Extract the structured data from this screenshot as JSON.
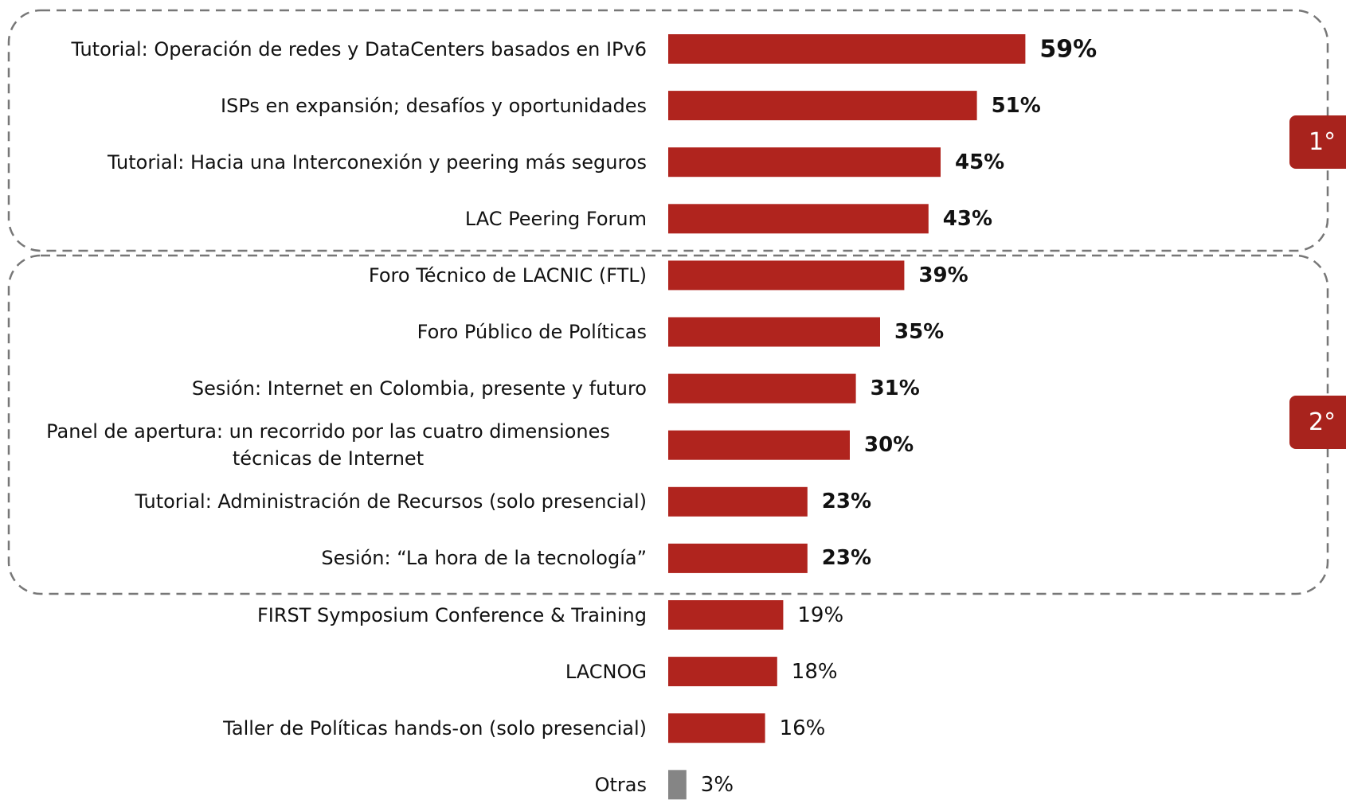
{
  "chart_data": {
    "type": "barh",
    "categories": [
      "Tutorial: Operación de redes y DataCenters basados en IPv6",
      "ISPs en expansión; desafíos y oportunidades",
      "Tutorial: Hacia una Interconexión y peering más seguros",
      "LAC Peering Forum",
      "Foro Técnico de LACNIC (FTL)",
      "Foro Público de Políticas",
      "Sesión: Internet en Colombia, presente y futuro",
      "Panel de apertura: un recorrido por las cuatro dimensiones técnicas de Internet",
      "Tutorial: Administración de Recursos (solo presencial)",
      "Sesión: “La hora de la tecnología”",
      "FIRST Symposium Conference & Training",
      "LACNOG",
      "Taller de Políticas hands-on (solo presencial)",
      "Otras"
    ],
    "values": [
      59,
      51,
      45,
      43,
      39,
      35,
      31,
      30,
      23,
      23,
      19,
      18,
      16,
      3
    ],
    "value_labels": [
      "59%",
      "51%",
      "45%",
      "43%",
      "39%",
      "35%",
      "31%",
      "30%",
      "23%",
      "23%",
      "19%",
      "18%",
      "16%",
      "3%"
    ],
    "colors": [
      "#b0241e",
      "#b0241e",
      "#b0241e",
      "#b0241e",
      "#b0241e",
      "#b0241e",
      "#b0241e",
      "#b0241e",
      "#b0241e",
      "#b0241e",
      "#b0241e",
      "#b0241e",
      "#b0241e",
      "#858585"
    ],
    "groups": [
      {
        "label": "1°",
        "start": 0,
        "end": 3
      },
      {
        "label": "2°",
        "start": 4,
        "end": 9
      }
    ],
    "badge_color": "#a8231d"
  }
}
